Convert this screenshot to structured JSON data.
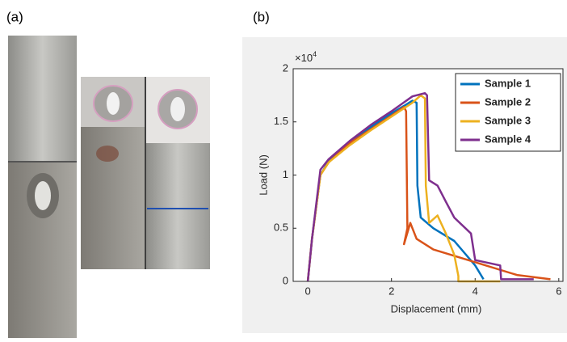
{
  "labels": {
    "a": "(a)",
    "b": "(b)"
  },
  "chart_data": {
    "type": "line",
    "xlabel": "Displacement (mm)",
    "ylabel": "Load (N)",
    "y_multiplier": {
      "base": "×10",
      "exponent": "4"
    },
    "xlim": [
      -0.35,
      6.1
    ],
    "ylim": [
      0,
      2
    ],
    "xticks": [
      0,
      2,
      4,
      6
    ],
    "yticks": [
      0,
      0.5,
      1,
      1.5,
      2
    ],
    "legend": "upper right",
    "series": [
      {
        "name": "Sample 1",
        "color": "#0072bd",
        "x": [
          0,
          0.1,
          0.3,
          0.5,
          1,
          1.5,
          2,
          2.3,
          2.5,
          2.6,
          2.62,
          2.7,
          3,
          3.5,
          4,
          4.2
        ],
        "y": [
          0,
          0.4,
          1.0,
          1.13,
          1.3,
          1.45,
          1.58,
          1.65,
          1.7,
          1.68,
          0.9,
          0.6,
          0.5,
          0.38,
          0.15,
          0.02
        ]
      },
      {
        "name": "Sample 2",
        "color": "#d95319",
        "x": [
          0,
          0.1,
          0.3,
          0.5,
          1,
          1.5,
          2,
          2.3,
          2.35,
          2.38,
          2.3,
          2.45,
          2.6,
          3,
          4,
          5,
          5.8
        ],
        "y": [
          0,
          0.4,
          1.0,
          1.12,
          1.3,
          1.43,
          1.56,
          1.64,
          1.6,
          0.5,
          0.35,
          0.55,
          0.4,
          0.3,
          0.18,
          0.06,
          0.02
        ]
      },
      {
        "name": "Sample 3",
        "color": "#edb120",
        "x": [
          0,
          0.1,
          0.3,
          0.5,
          1,
          1.5,
          2,
          2.5,
          2.7,
          2.8,
          2.82,
          2.9,
          3.1,
          3.3,
          3.5,
          3.6,
          3.6,
          4.6
        ],
        "y": [
          0,
          0.4,
          1.0,
          1.12,
          1.28,
          1.42,
          1.55,
          1.68,
          1.75,
          1.72,
          0.9,
          0.55,
          0.62,
          0.45,
          0.25,
          0.05,
          0,
          0
        ]
      },
      {
        "name": "Sample 4",
        "color": "#7e2f8e",
        "x": [
          0,
          0.1,
          0.3,
          0.5,
          1,
          1.5,
          2,
          2.5,
          2.8,
          2.85,
          2.9,
          3.1,
          3.3,
          3.5,
          3.9,
          4,
          4.6,
          4.62,
          5.4
        ],
        "y": [
          0,
          0.4,
          1.05,
          1.15,
          1.32,
          1.47,
          1.6,
          1.74,
          1.77,
          1.75,
          0.95,
          0.9,
          0.75,
          0.6,
          0.45,
          0.2,
          0.15,
          0.02,
          0.02
        ]
      }
    ]
  }
}
